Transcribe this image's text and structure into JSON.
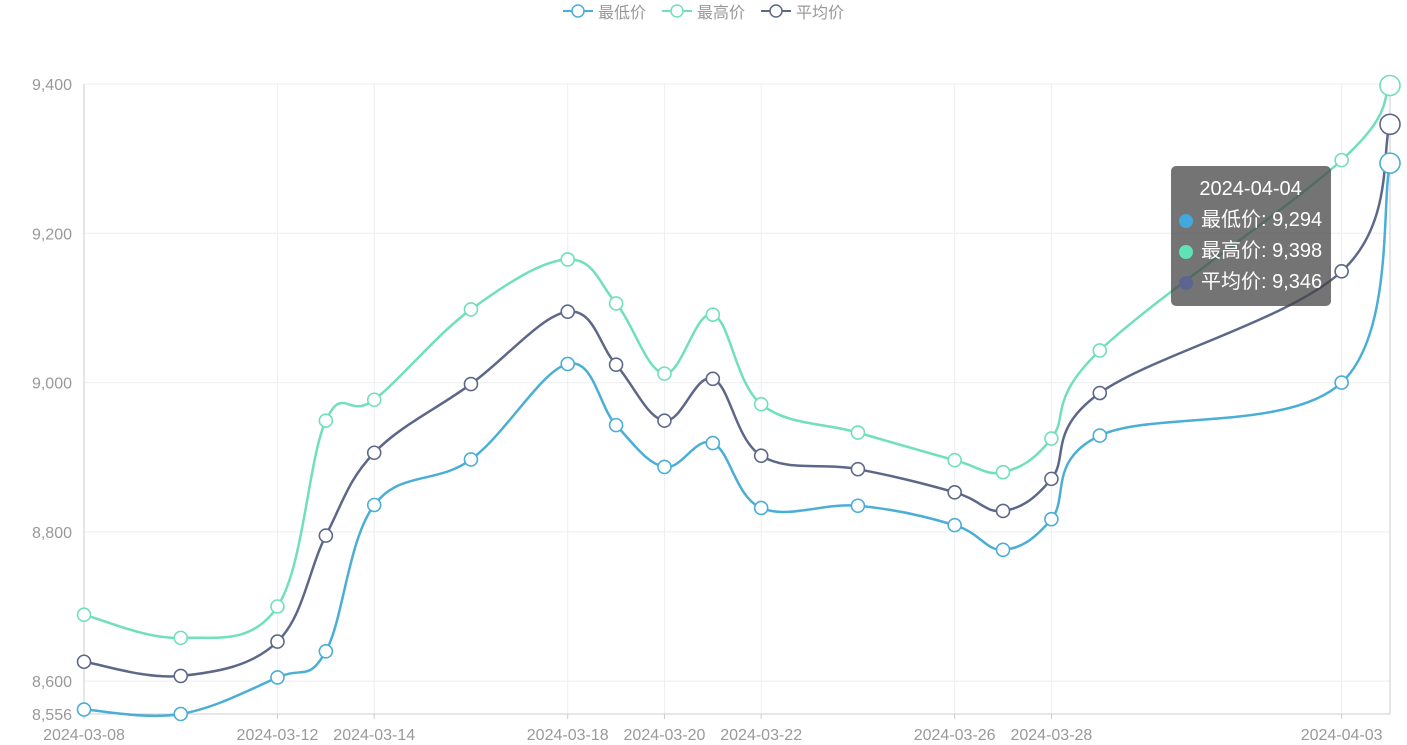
{
  "chart_data": {
    "type": "line",
    "x": [
      "2024-03-08",
      "2024-03-10",
      "2024-03-12",
      "2024-03-13",
      "2024-03-14",
      "2024-03-16",
      "2024-03-18",
      "2024-03-19",
      "2024-03-20",
      "2024-03-21",
      "2024-03-22",
      "2024-03-24",
      "2024-03-26",
      "2024-03-27",
      "2024-03-28",
      "2024-03-29",
      "2024-04-03",
      "2024-04-04"
    ],
    "xticks": [
      "2024-03-08",
      "2024-03-12",
      "2024-03-14",
      "2024-03-18",
      "2024-03-20",
      "2024-03-22",
      "2024-03-26",
      "2024-03-28",
      "2024-04-03"
    ],
    "yticks": [
      "8,556",
      "8,600",
      "8,800",
      "9,000",
      "9,200",
      "9,400"
    ],
    "ylim": [
      8556,
      9400
    ],
    "smooth": true,
    "grid": true,
    "legend_position": "top-center",
    "series": [
      {
        "name": "最低价",
        "color": "#4aaed6",
        "values": [
          8562,
          8556,
          8605,
          8640,
          8836,
          8897,
          9025,
          8943,
          8887,
          8919,
          8832,
          8835,
          8809,
          8776,
          8817,
          8929,
          9000,
          9294
        ]
      },
      {
        "name": "最高价",
        "color": "#70dfbc",
        "values": [
          8689,
          8658,
          8700,
          8949,
          8977,
          9098,
          9165,
          9106,
          9012,
          9091,
          8971,
          8933,
          8896,
          8880,
          8925,
          9043,
          9298,
          9398
        ]
      },
      {
        "name": "平均价",
        "color": "#5d6888",
        "values": [
          8626,
          8607,
          8653,
          8795,
          8906,
          8998,
          9095,
          9024,
          8949,
          9005,
          8902,
          8884,
          8853,
          8828,
          8871,
          8986,
          9149,
          9346
        ]
      }
    ]
  },
  "tooltip": {
    "title": "2024-04-04",
    "rows": [
      {
        "label": "最低价: 9,294",
        "color": "#42a9dd"
      },
      {
        "label": "最高价: 9,398",
        "color": "#5fe3b4"
      },
      {
        "label": "平均价: 9,346",
        "color": "#5b6590"
      }
    ]
  }
}
